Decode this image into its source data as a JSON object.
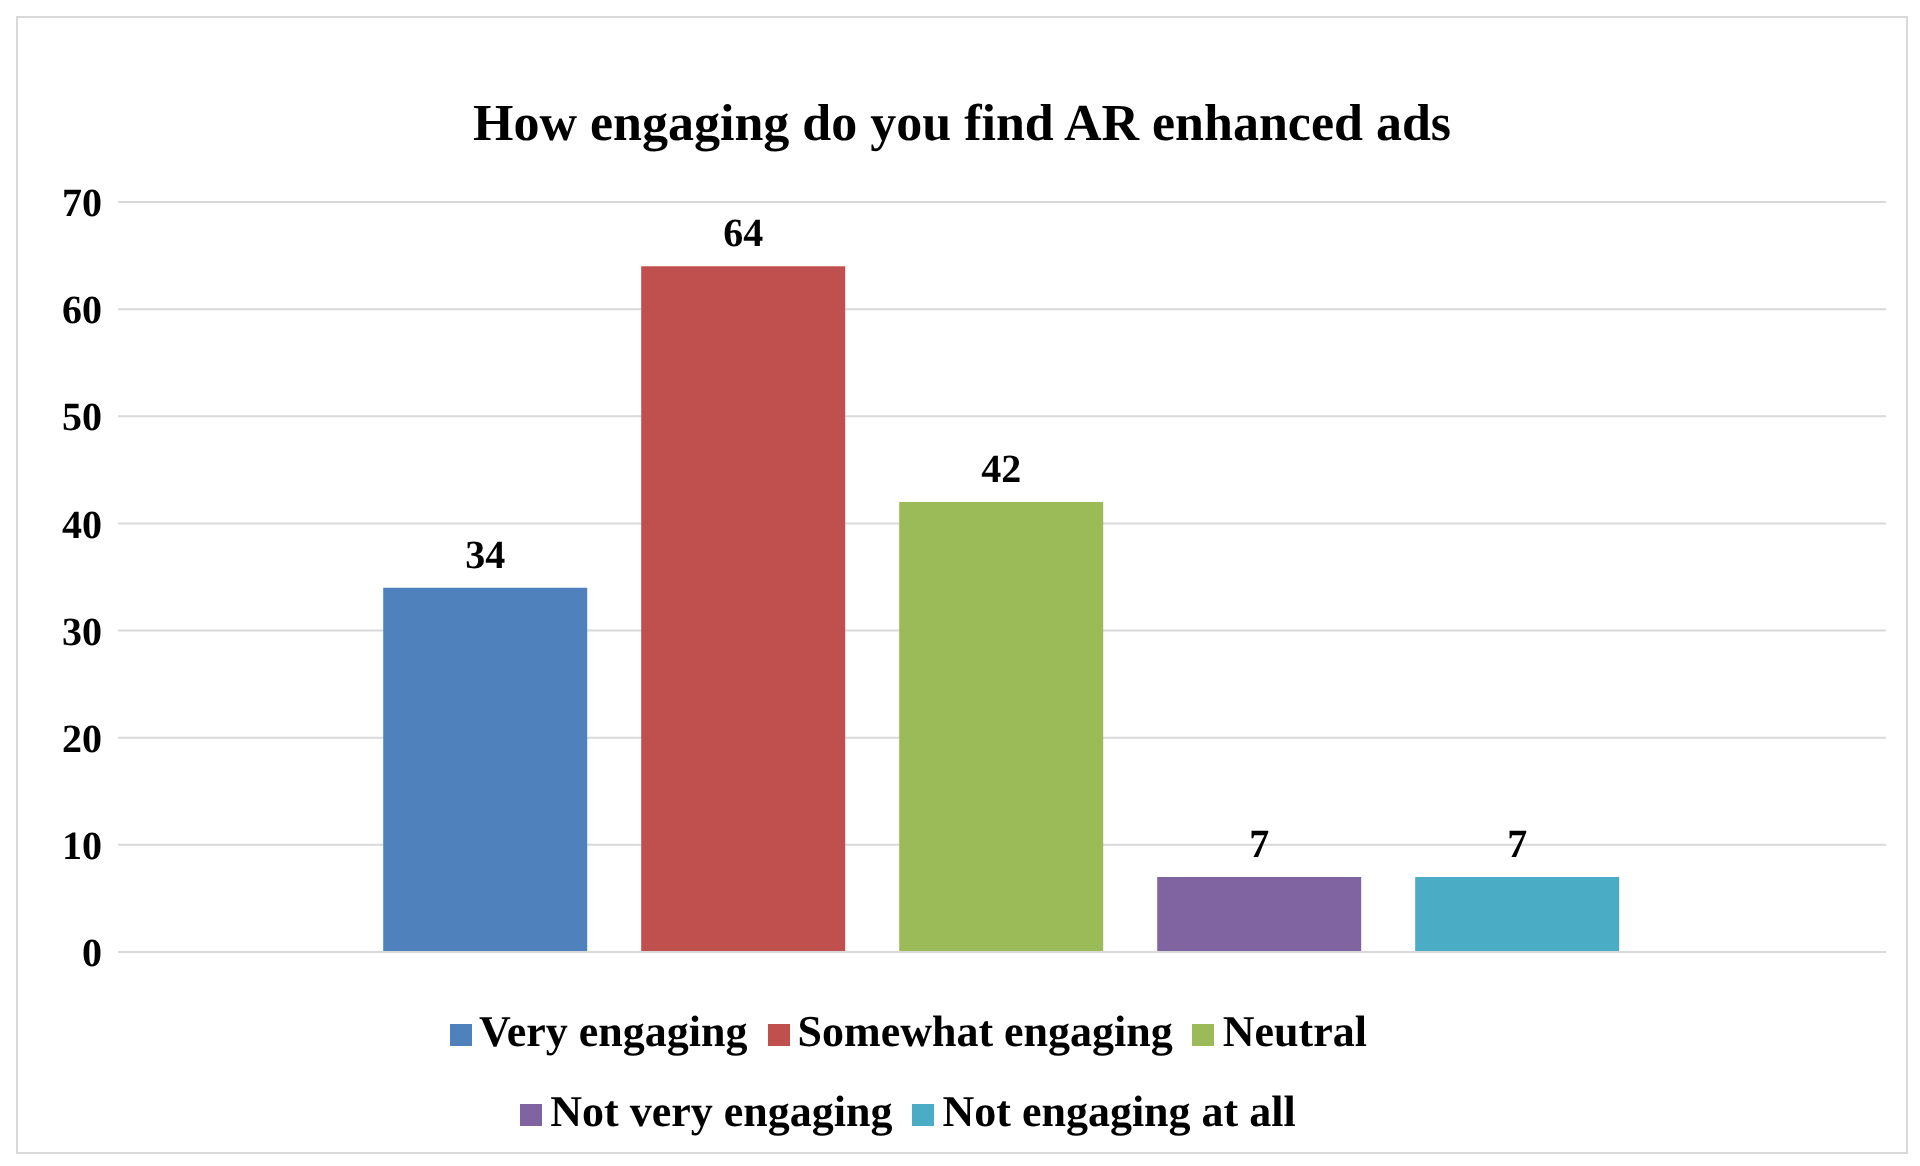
{
  "chart_data": {
    "type": "bar",
    "title": "How engaging do you find AR enhanced ads",
    "categories": [
      null
    ],
    "series": [
      {
        "name": "Very engaging",
        "color": "#4f81bd",
        "values": [
          34
        ]
      },
      {
        "name": "Somewhat engaging",
        "color": "#c0504d",
        "values": [
          64
        ]
      },
      {
        "name": "Neutral",
        "color": "#9bbb59",
        "values": [
          42
        ]
      },
      {
        "name": "Not very engaging",
        "color": "#8064a2",
        "values": [
          7
        ]
      },
      {
        "name": "Not engaging at all",
        "color": "#4bacc6",
        "values": [
          7
        ]
      }
    ],
    "ylim": [
      0,
      70
    ],
    "yticks": [
      0,
      10,
      20,
      30,
      40,
      50,
      60,
      70
    ],
    "grid": "y",
    "legend": "bottom",
    "data_labels": true
  }
}
